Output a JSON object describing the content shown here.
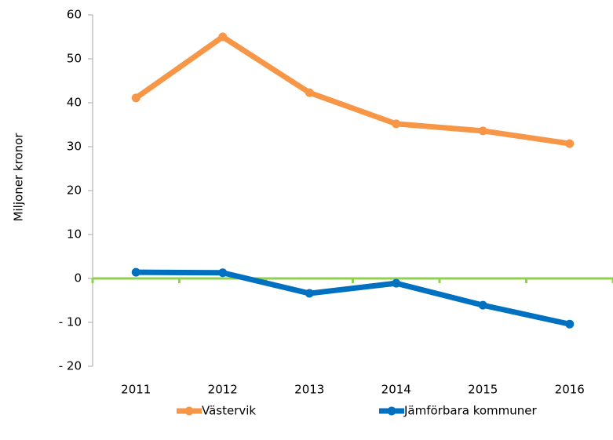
{
  "chart_data": {
    "type": "line",
    "y_label": "Miljoner kronor",
    "categories": [
      "2011",
      "2012",
      "2013",
      "2014",
      "2015",
      "2016"
    ],
    "series": [
      {
        "name": "Västervik",
        "color": "#f79646",
        "values": [
          41.1,
          55,
          42.3,
          35.2,
          33.6,
          30.7
        ]
      },
      {
        "name": "Jämförbara kommuner",
        "color": "#0070c0",
        "values": [
          1.4,
          1.3,
          -3.4,
          -1.1,
          -6.1,
          -10.4
        ]
      }
    ],
    "ylim": [
      -20,
      60
    ],
    "yticks": [
      {
        "value": -20,
        "label": "- 20"
      },
      {
        "value": -10,
        "label": "- 10"
      },
      0,
      10,
      20,
      30,
      40,
      50,
      60
    ],
    "zero_line_color": "#92d050",
    "legend": "bottom"
  }
}
